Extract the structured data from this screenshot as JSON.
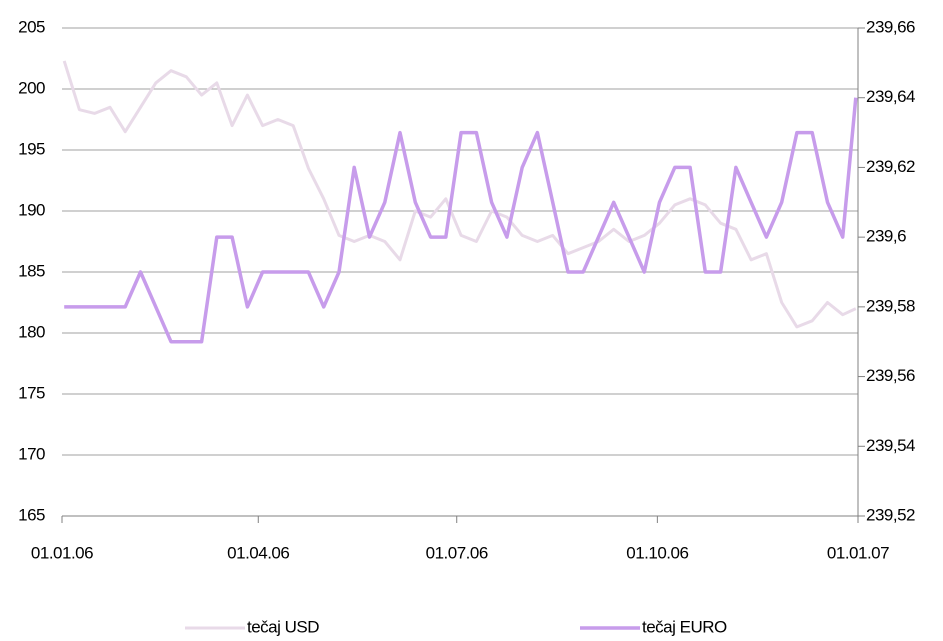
{
  "chart_data": {
    "type": "line",
    "x": [
      "2006-01-02",
      "2006-01-09",
      "2006-01-16",
      "2006-01-23",
      "2006-01-30",
      "2006-02-06",
      "2006-02-13",
      "2006-02-20",
      "2006-02-27",
      "2006-03-06",
      "2006-03-13",
      "2006-03-20",
      "2006-03-27",
      "2006-04-03",
      "2006-04-10",
      "2006-04-17",
      "2006-04-24",
      "2006-05-01",
      "2006-05-08",
      "2006-05-15",
      "2006-05-22",
      "2006-05-29",
      "2006-06-05",
      "2006-06-12",
      "2006-06-19",
      "2006-06-26",
      "2006-07-03",
      "2006-07-10",
      "2006-07-17",
      "2006-07-24",
      "2006-07-31",
      "2006-08-07",
      "2006-08-14",
      "2006-08-21",
      "2006-08-28",
      "2006-09-04",
      "2006-09-11",
      "2006-09-18",
      "2006-09-25",
      "2006-10-02",
      "2006-10-09",
      "2006-10-16",
      "2006-10-23",
      "2006-10-30",
      "2006-11-06",
      "2006-11-13",
      "2006-11-20",
      "2006-11-27",
      "2006-12-04",
      "2006-12-11",
      "2006-12-18",
      "2006-12-25",
      "2006-12-31"
    ],
    "series": [
      {
        "name": "tečaj USD",
        "color": "#e8dae8",
        "width": 3,
        "values": [
          202.3,
          198.3,
          198,
          198.5,
          196.5,
          198.5,
          200.5,
          201.5,
          201,
          199.5,
          200.5,
          197,
          199.5,
          197,
          197.5,
          197,
          193.5,
          191,
          188,
          187.5,
          188,
          187.5,
          186,
          190,
          189.5,
          191,
          188,
          187.5,
          190,
          189.5,
          188,
          187.5,
          188,
          186.5,
          187,
          187.5,
          188.5,
          187.5,
          188,
          189,
          190.5,
          191,
          190.5,
          189,
          188.5,
          186,
          186.5,
          182.5,
          180.5,
          181,
          182.5,
          181.5,
          182
        ]
      },
      {
        "name": "tečaj EURO",
        "color": "#c79ceb",
        "width": 3.5,
        "axis": "y2",
        "values": [
          239.58,
          239.58,
          239.58,
          239.58,
          239.58,
          239.59,
          239.58,
          239.57,
          239.57,
          239.57,
          239.6,
          239.6,
          239.58,
          239.59,
          239.59,
          239.59,
          239.59,
          239.58,
          239.59,
          239.62,
          239.6,
          239.61,
          239.63,
          239.61,
          239.6,
          239.6,
          239.63,
          239.63,
          239.61,
          239.6,
          239.62,
          239.63,
          239.61,
          239.59,
          239.59,
          239.6,
          239.61,
          239.6,
          239.59,
          239.61,
          239.62,
          239.62,
          239.59,
          239.59,
          239.62,
          239.61,
          239.6,
          239.61,
          239.63,
          239.63,
          239.61,
          239.6,
          239.64
        ]
      }
    ],
    "xlim": [
      "2006-01-01",
      "2007-01-01"
    ],
    "xticks": [
      {
        "value": "2006-01-01",
        "label": "01.01.06"
      },
      {
        "value": "2006-04-01",
        "label": "01.04.06"
      },
      {
        "value": "2006-07-01",
        "label": "01.07.06"
      },
      {
        "value": "2006-10-01",
        "label": "01.10.06"
      },
      {
        "value": "2007-01-01",
        "label": "01.01.07"
      }
    ],
    "ylim": [
      165,
      205
    ],
    "yticks": [
      165,
      170,
      175,
      180,
      185,
      190,
      195,
      200,
      205
    ],
    "y2lim": [
      239.52,
      239.66
    ],
    "y2ticks": [
      {
        "value": 239.52,
        "label": "239,52"
      },
      {
        "value": 239.54,
        "label": "239,54"
      },
      {
        "value": 239.56,
        "label": "239,56"
      },
      {
        "value": 239.58,
        "label": "239,58"
      },
      {
        "value": 239.6,
        "label": "239,6"
      },
      {
        "value": 239.62,
        "label": "239,62"
      },
      {
        "value": 239.64,
        "label": "239,64"
      },
      {
        "value": 239.66,
        "label": "239,66"
      }
    ],
    "grid": true
  }
}
